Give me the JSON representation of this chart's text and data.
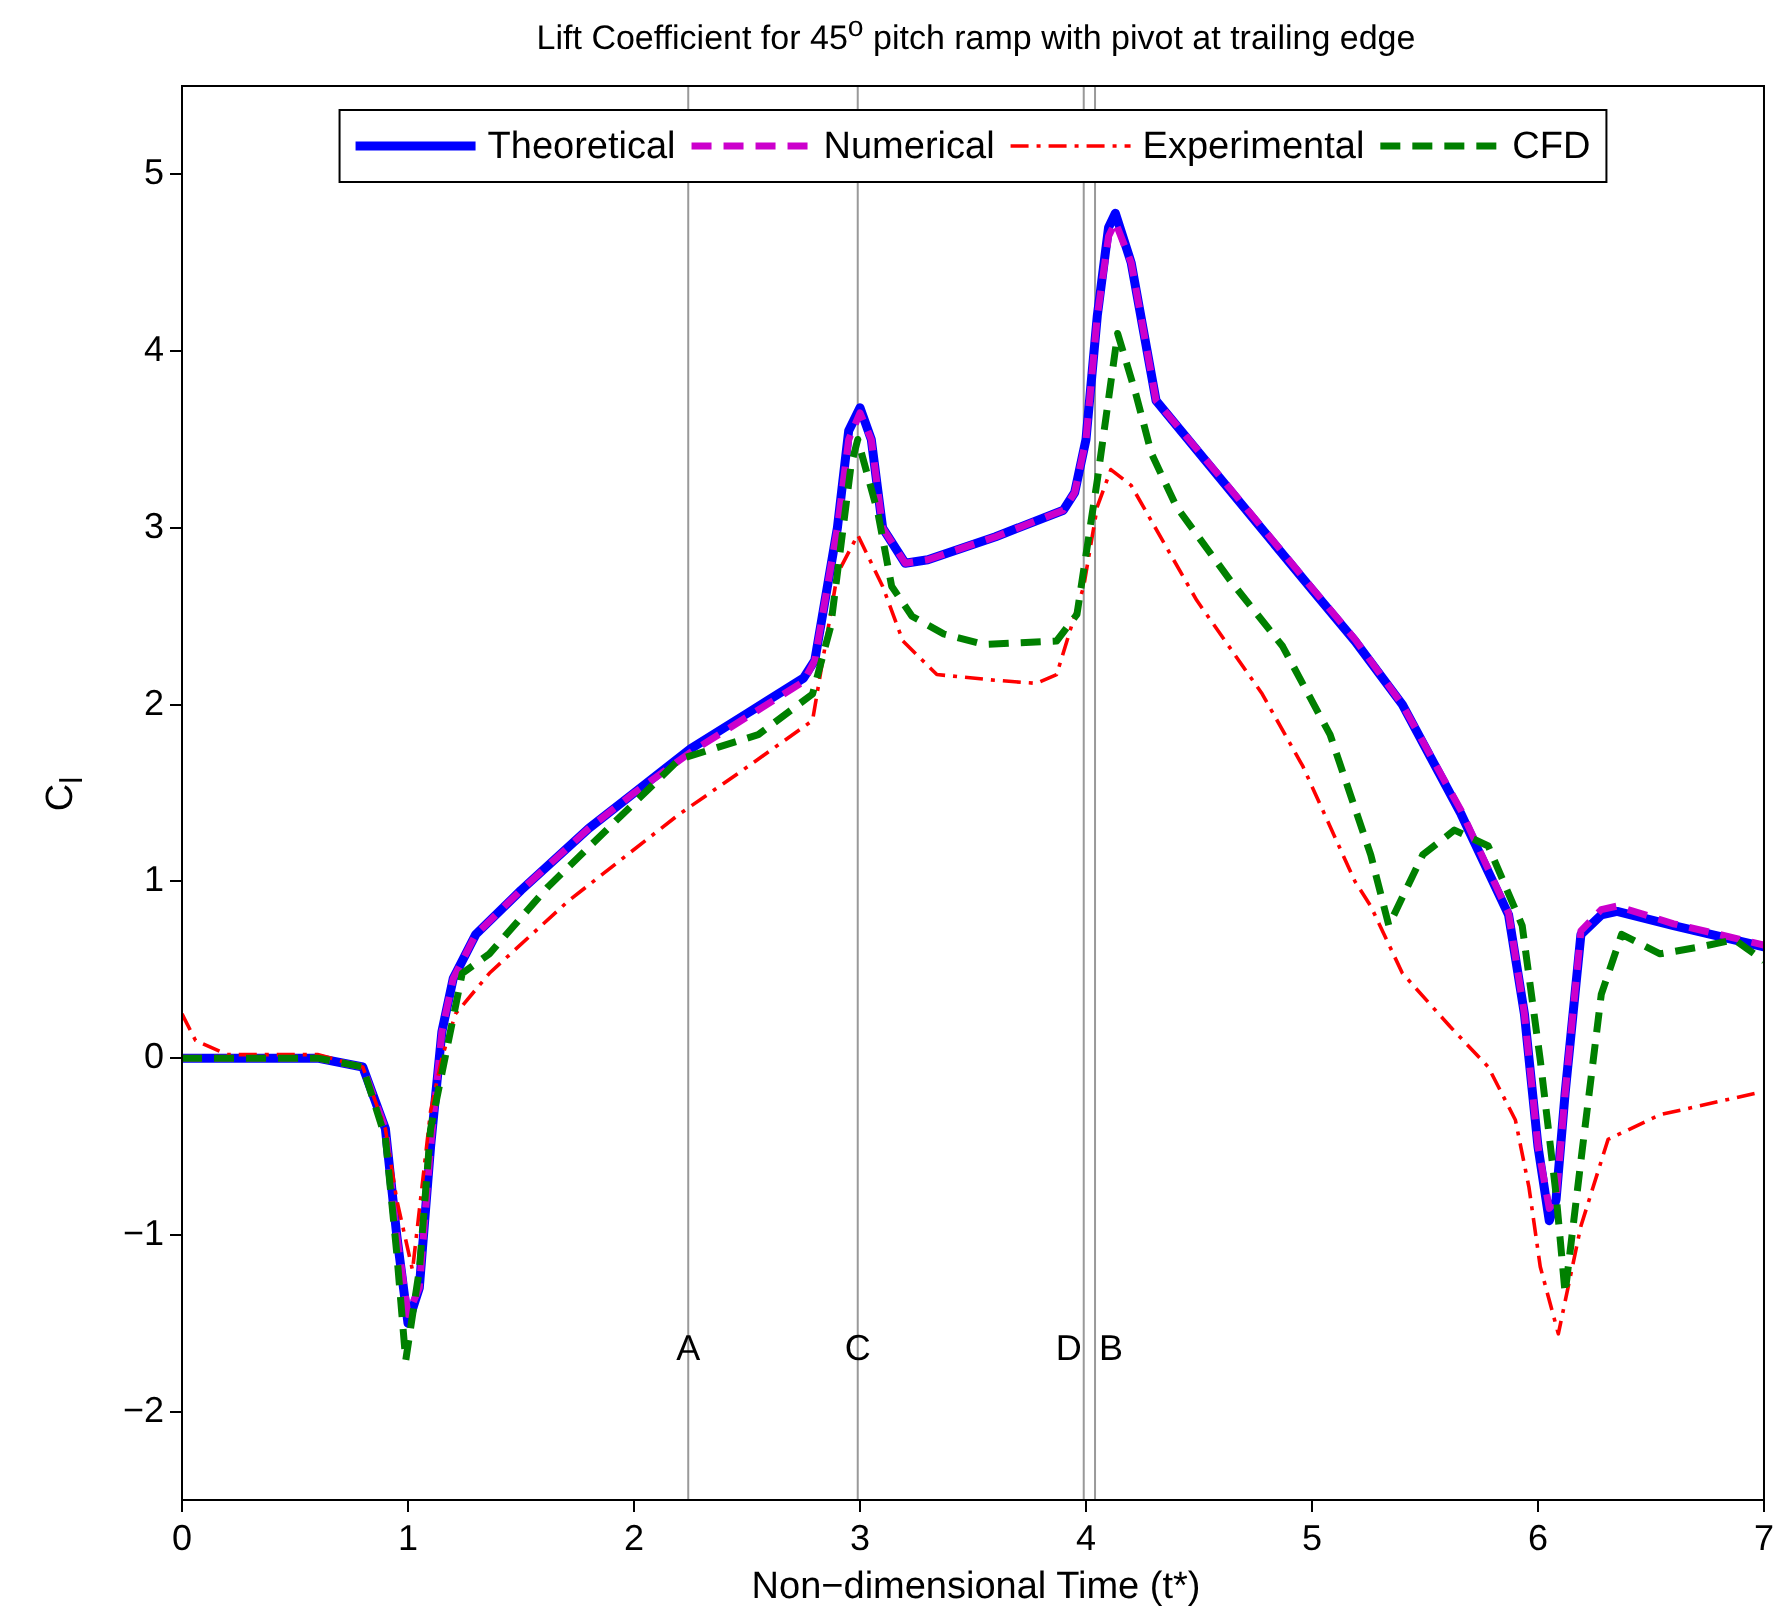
{
  "chart_data": {
    "type": "line",
    "title": "Lift Coefficient for 45$^{o}$ pitch ramp with pivot at trailing edge",
    "xlabel": "Non−dimensional Time (t*)",
    "ylabel": "C$_{l}$",
    "xlim": [
      0,
      7
    ],
    "xticks": [
      0,
      1,
      2,
      3,
      4,
      5,
      6,
      7
    ],
    "ylim": [
      -2.5,
      5.5
    ],
    "yticks": [
      -2,
      -1,
      0,
      1,
      2,
      3,
      4,
      5
    ],
    "grid": false,
    "legend": "top",
    "marker": "none",
    "series": [
      {
        "name": "Theoretical",
        "color": "#0000ff",
        "line_style": "solid",
        "x": [
          0,
          0.6,
          0.8,
          0.9,
          0.95,
          1.0,
          1.05,
          1.1,
          1.15,
          1.2,
          1.3,
          1.5,
          1.8,
          2.0,
          2.25,
          2.5,
          2.75,
          2.8,
          2.9,
          2.95,
          3.0,
          3.05,
          3.1,
          3.2,
          3.3,
          3.6,
          3.9,
          3.95,
          4.0,
          4.05,
          4.1,
          4.13,
          4.2,
          4.31,
          4.6,
          4.8,
          5.0,
          5.19,
          5.4,
          5.66,
          5.87,
          5.94,
          6.0,
          6.05,
          6.08,
          6.12,
          6.19,
          6.28,
          6.35,
          6.6,
          7.0
        ],
        "values": [
          0,
          0,
          -0.05,
          -0.4,
          -1.0,
          -1.5,
          -1.3,
          -0.5,
          0.15,
          0.45,
          0.7,
          0.95,
          1.3,
          1.5,
          1.75,
          1.95,
          2.15,
          2.25,
          3.0,
          3.55,
          3.68,
          3.5,
          3.0,
          2.8,
          2.82,
          2.95,
          3.1,
          3.2,
          3.5,
          4.2,
          4.7,
          4.78,
          4.5,
          3.72,
          3.27,
          2.96,
          2.65,
          2.36,
          2.0,
          1.38,
          0.81,
          0.25,
          -0.5,
          -0.92,
          -0.8,
          -0.2,
          0.7,
          0.81,
          0.83,
          0.75,
          0.63
        ]
      },
      {
        "name": "Numerical",
        "color": "#cc00cc",
        "line_style": "dashed",
        "x": [
          0,
          0.6,
          0.8,
          0.9,
          0.95,
          1.0,
          1.05,
          1.1,
          1.15,
          1.2,
          1.3,
          1.5,
          1.8,
          2.0,
          2.25,
          2.5,
          2.75,
          2.8,
          2.9,
          2.95,
          3.0,
          3.05,
          3.1,
          3.2,
          3.3,
          3.6,
          3.9,
          3.95,
          4.0,
          4.05,
          4.1,
          4.13,
          4.2,
          4.31,
          4.6,
          4.8,
          5.0,
          5.19,
          5.4,
          5.66,
          5.87,
          5.94,
          6.0,
          6.05,
          6.08,
          6.12,
          6.19,
          6.28,
          6.35,
          6.6,
          7.0
        ],
        "values": [
          0,
          0,
          -0.05,
          -0.4,
          -1.0,
          -1.45,
          -1.3,
          -0.5,
          0.15,
          0.45,
          0.7,
          0.95,
          1.3,
          1.5,
          1.73,
          1.93,
          2.13,
          2.25,
          3.0,
          3.5,
          3.65,
          3.5,
          3.0,
          2.8,
          2.82,
          2.95,
          3.1,
          3.2,
          3.5,
          4.2,
          4.65,
          4.73,
          4.5,
          3.72,
          3.28,
          2.97,
          2.66,
          2.37,
          2.0,
          1.4,
          0.82,
          0.25,
          -0.5,
          -0.85,
          -0.8,
          -0.2,
          0.72,
          0.84,
          0.86,
          0.76,
          0.64
        ]
      },
      {
        "name": "Experimental",
        "color": "#ff0000",
        "line_style": "dotted",
        "x": [
          0,
          0.06,
          0.2,
          0.6,
          0.8,
          0.9,
          0.95,
          1.02,
          1.1,
          1.15,
          1.21,
          1.36,
          1.71,
          2.2,
          2.46,
          2.79,
          2.9,
          2.99,
          3.1,
          3.19,
          3.34,
          3.58,
          3.78,
          3.87,
          3.99,
          4.05,
          4.11,
          4.2,
          4.49,
          4.78,
          4.96,
          5.19,
          5.26,
          5.4,
          5.61,
          5.78,
          5.9,
          5.96,
          6.01,
          6.09,
          6.19,
          6.31,
          6.54,
          6.96
        ],
        "values": [
          0.25,
          0.1,
          0.02,
          0.02,
          -0.05,
          -0.4,
          -0.8,
          -1.2,
          -0.3,
          0.0,
          0.25,
          0.48,
          0.89,
          1.38,
          1.61,
          1.91,
          2.74,
          2.96,
          2.67,
          2.36,
          2.17,
          2.14,
          2.12,
          2.17,
          2.67,
          3.12,
          3.33,
          3.24,
          2.59,
          2.06,
          1.65,
          1.0,
          0.86,
          0.48,
          0.18,
          -0.05,
          -0.35,
          -0.73,
          -1.18,
          -1.56,
          -0.95,
          -0.46,
          -0.32,
          -0.2
        ]
      },
      {
        "name": "CFD",
        "color": "#008000",
        "line_style": "dashed",
        "x": [
          0,
          0.6,
          0.8,
          0.9,
          0.95,
          0.99,
          1.05,
          1.1,
          1.24,
          1.36,
          1.62,
          1.95,
          2.2,
          2.55,
          2.79,
          2.87,
          2.96,
          2.99,
          3.08,
          3.14,
          3.23,
          3.37,
          3.55,
          3.87,
          3.96,
          4.05,
          4.14,
          4.22,
          4.29,
          4.4,
          4.64,
          4.87,
          5.08,
          5.26,
          5.34,
          5.49,
          5.63,
          5.78,
          5.93,
          6.01,
          6.08,
          6.12,
          6.19,
          6.28,
          6.37,
          6.54,
          6.72,
          6.87,
          7.0
        ],
        "values": [
          0,
          0,
          -0.05,
          -0.45,
          -1.1,
          -1.71,
          -1.2,
          -0.4,
          0.48,
          0.59,
          0.97,
          1.38,
          1.69,
          1.83,
          2.06,
          2.44,
          3.35,
          3.5,
          3.08,
          2.67,
          2.5,
          2.4,
          2.34,
          2.36,
          2.51,
          3.27,
          4.1,
          3.76,
          3.42,
          3.12,
          2.7,
          2.33,
          1.83,
          1.15,
          0.75,
          1.15,
          1.29,
          1.2,
          0.75,
          -0.01,
          -0.77,
          -1.33,
          -0.58,
          0.36,
          0.7,
          0.59,
          0.63,
          0.67,
          0.55
        ]
      }
    ],
    "ref_lines": [
      {
        "axis": "x",
        "value": 2.24,
        "label": "A",
        "color": "#999999"
      },
      {
        "axis": "x",
        "value": 2.99,
        "label": "C",
        "color": "#999999"
      },
      {
        "axis": "x",
        "value": 3.99,
        "label": "D",
        "color": "#999999"
      },
      {
        "axis": "x",
        "value": 4.04,
        "label": "B",
        "color": "#999999"
      }
    ]
  }
}
